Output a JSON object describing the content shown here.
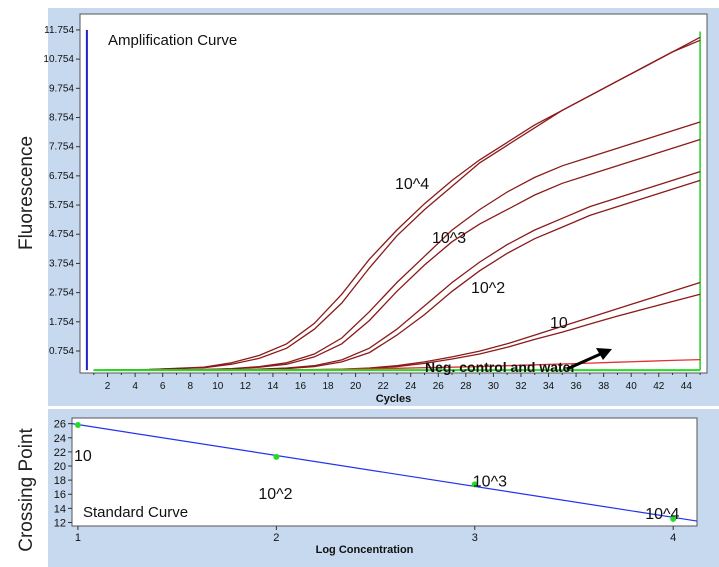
{
  "chart_data": [
    {
      "type": "line",
      "title": "Amplification Curve",
      "xlabel": "Cycles",
      "ylabel": "Fluorescence",
      "xlim": [
        0,
        45.5
      ],
      "ylim": [
        0,
        12.3
      ],
      "x_ticks": [
        "2",
        "4",
        "6",
        "8",
        "10",
        "12",
        "14",
        "16",
        "18",
        "20",
        "22",
        "24",
        "26",
        "28",
        "30",
        "32",
        "34",
        "36",
        "38",
        "40",
        "42",
        "44"
      ],
      "y_ticks": [
        "0.754",
        "1.754",
        "2.754",
        "3.754",
        "4.754",
        "5.754",
        "6.754",
        "7.754",
        "8.754",
        "9.754",
        "10.754",
        "11.754"
      ],
      "x": [
        1,
        5,
        9,
        11,
        13,
        15,
        17,
        19,
        21,
        23,
        25,
        27,
        29,
        31,
        33,
        35,
        37,
        39,
        41,
        43,
        45
      ],
      "series": [
        {
          "name": "10^4",
          "color": "#8b1a1a",
          "values": [
            0.1,
            0.12,
            0.2,
            0.35,
            0.6,
            1.0,
            1.7,
            2.7,
            3.9,
            4.9,
            5.8,
            6.6,
            7.3,
            7.9,
            8.5,
            9.0,
            9.5,
            10.0,
            10.5,
            11.0,
            11.5
          ]
        },
        {
          "name": "10^4",
          "color": "#8b1a1a",
          "values": [
            0.1,
            0.12,
            0.18,
            0.3,
            0.5,
            0.85,
            1.5,
            2.4,
            3.6,
            4.7,
            5.6,
            6.4,
            7.2,
            7.8,
            8.4,
            9.0,
            9.5,
            10.0,
            10.5,
            11.0,
            11.4
          ]
        },
        {
          "name": "10^3",
          "color": "#8b1a1a",
          "values": [
            0.1,
            0.1,
            0.12,
            0.15,
            0.22,
            0.35,
            0.65,
            1.2,
            2.1,
            3.1,
            4.0,
            4.9,
            5.6,
            6.2,
            6.7,
            7.1,
            7.4,
            7.7,
            8.0,
            8.3,
            8.6
          ]
        },
        {
          "name": "10^3",
          "color": "#8b1a1a",
          "values": [
            0.1,
            0.1,
            0.12,
            0.14,
            0.2,
            0.3,
            0.55,
            1.0,
            1.8,
            2.8,
            3.7,
            4.5,
            5.1,
            5.6,
            6.1,
            6.5,
            6.8,
            7.1,
            7.4,
            7.7,
            8.0
          ]
        },
        {
          "name": "10^2",
          "color": "#8b1a1a",
          "values": [
            0.1,
            0.1,
            0.1,
            0.11,
            0.13,
            0.17,
            0.25,
            0.45,
            0.85,
            1.5,
            2.3,
            3.1,
            3.8,
            4.4,
            4.9,
            5.3,
            5.7,
            6.0,
            6.3,
            6.6,
            6.9
          ]
        },
        {
          "name": "10^2",
          "color": "#8b1a1a",
          "values": [
            0.1,
            0.1,
            0.1,
            0.1,
            0.12,
            0.15,
            0.22,
            0.38,
            0.7,
            1.3,
            2.0,
            2.8,
            3.5,
            4.1,
            4.6,
            5.0,
            5.4,
            5.7,
            6.0,
            6.3,
            6.6
          ]
        },
        {
          "name": "10",
          "color": "#8b1a1a",
          "values": [
            0.1,
            0.1,
            0.1,
            0.1,
            0.1,
            0.1,
            0.11,
            0.13,
            0.17,
            0.25,
            0.38,
            0.55,
            0.75,
            1.0,
            1.3,
            1.6,
            1.9,
            2.2,
            2.5,
            2.8,
            3.1
          ]
        },
        {
          "name": "10",
          "color": "#8b1a1a",
          "values": [
            0.1,
            0.1,
            0.1,
            0.1,
            0.1,
            0.1,
            0.1,
            0.12,
            0.15,
            0.22,
            0.33,
            0.48,
            0.65,
            0.88,
            1.15,
            1.4,
            1.68,
            1.95,
            2.2,
            2.45,
            2.7
          ]
        },
        {
          "name": "",
          "color": "#e53030",
          "values": [
            0.1,
            0.1,
            0.1,
            0.1,
            0.11,
            0.11,
            0.12,
            0.13,
            0.14,
            0.16,
            0.18,
            0.2,
            0.22,
            0.25,
            0.28,
            0.31,
            0.34,
            0.37,
            0.4,
            0.43,
            0.46
          ]
        },
        {
          "name": "",
          "color": "#22dd22",
          "values": [
            0.1,
            0.1,
            0.1,
            0.1,
            0.1,
            0.1,
            0.1,
            0.1,
            0.1,
            0.1,
            0.1,
            0.1,
            0.1,
            0.1,
            0.1,
            0.1,
            0.1,
            0.1,
            0.1,
            0.1,
            0.1
          ]
        }
      ],
      "annotations": [
        "10^4",
        "10^3",
        "10^2",
        "10",
        "Neg. control and water"
      ],
      "grid": false
    },
    {
      "type": "scatter",
      "title": "Standard Curve",
      "xlabel": "Log Concentration",
      "ylabel": "Crossing Point",
      "xlim": [
        0.97,
        4.12
      ],
      "ylim": [
        11.5,
        26.8
      ],
      "x_ticks": [
        "1",
        "2",
        "3",
        "4"
      ],
      "y_ticks": [
        "12",
        "14",
        "16",
        "18",
        "20",
        "22",
        "24",
        "26"
      ],
      "points": [
        {
          "x": 1,
          "y": 25.8,
          "label": "10"
        },
        {
          "x": 2,
          "y": 21.3,
          "label": "10^2"
        },
        {
          "x": 3,
          "y": 17.4,
          "label": "10^3"
        },
        {
          "x": 4,
          "y": 12.5,
          "label": "10^4"
        }
      ],
      "fit_line": {
        "x": [
          0.97,
          4.12
        ],
        "y": [
          26.0,
          12.2
        ]
      },
      "grid": false
    }
  ]
}
